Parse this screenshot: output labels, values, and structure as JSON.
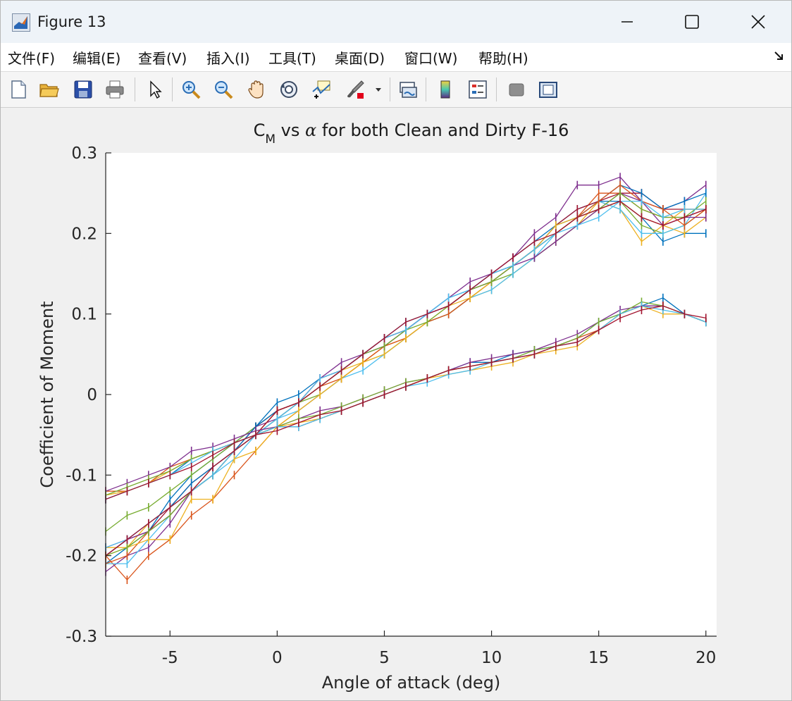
{
  "window": {
    "title": "Figure 13"
  },
  "menu": {
    "items": [
      "文件(F)",
      "编辑(E)",
      "查看(V)",
      "插入(I)",
      "工具(T)",
      "桌面(D)",
      "窗口(W)",
      "帮助(H)"
    ],
    "underline_keys": [
      "F",
      "E",
      "V",
      "I",
      "T",
      "D",
      "W",
      "H"
    ]
  },
  "toolbar": {
    "icons": [
      "new-figure-icon",
      "open-folder-icon",
      "save-icon",
      "print-icon",
      "pointer-icon",
      "zoom-in-icon",
      "zoom-out-icon",
      "pan-hand-icon",
      "rotate-3d-icon",
      "data-cursor-icon",
      "brush-icon",
      "link-plot-icon",
      "colorbar-icon",
      "legend-icon",
      "hide-plot-tools-icon",
      "show-plot-tools-icon"
    ]
  },
  "colors": {
    "matlab_order": [
      "#0072BD",
      "#D95319",
      "#EDB120",
      "#7E2F8E",
      "#77AC30",
      "#4DBEEE",
      "#A2142F"
    ],
    "plot_bg": "#ffffff",
    "figure_bg": "#f0f0f0"
  },
  "chart_data": {
    "type": "line",
    "title": "C_M vs α for both Clean and Dirty F-16",
    "title_parts": {
      "base": "C",
      "subscript": "M",
      "rest": " vs ",
      "greek": "α",
      "tail": " for both Clean and Dirty F-16"
    },
    "xlabel": "Angle of attack (deg)",
    "ylabel": "Coefficient of Moment",
    "xlim": [
      -8,
      20.5
    ],
    "ylim": [
      -0.3,
      0.3
    ],
    "xticks": [
      -5,
      0,
      5,
      10,
      15,
      20
    ],
    "yticks": [
      -0.3,
      -0.2,
      -0.1,
      0,
      0.1,
      0.2,
      0.3
    ],
    "ytick_labels": [
      "-0.3",
      "-0.2",
      "-0.1",
      "0",
      "0.1",
      "0.2",
      "0.3"
    ],
    "grid": false,
    "legend": "none",
    "x": [
      -8,
      -7,
      -6,
      -5,
      -4,
      -3,
      -2,
      -1,
      0,
      1,
      2,
      3,
      4,
      5,
      6,
      7,
      8,
      9,
      10,
      11,
      12,
      13,
      14,
      15,
      16,
      17,
      18,
      19,
      20
    ],
    "series_groups": [
      {
        "group": "upper",
        "series": [
          {
            "values": [
              -0.21,
              -0.19,
              -0.17,
              -0.13,
              -0.1,
              -0.08,
              -0.06,
              -0.04,
              -0.01,
              0.0,
              0.02,
              0.03,
              0.05,
              0.07,
              0.09,
              0.1,
              0.12,
              0.13,
              0.15,
              0.17,
              0.19,
              0.21,
              0.23,
              0.24,
              0.24,
              0.22,
              0.19,
              0.2,
              0.2
            ]
          },
          {
            "values": [
              -0.2,
              -0.23,
              -0.2,
              -0.18,
              -0.15,
              -0.13,
              -0.1,
              -0.07,
              -0.04,
              -0.02,
              0.0,
              0.02,
              0.04,
              0.06,
              0.08,
              0.1,
              0.11,
              0.13,
              0.14,
              0.16,
              0.18,
              0.2,
              0.22,
              0.25,
              0.25,
              0.23,
              0.22,
              0.22,
              0.23
            ]
          },
          {
            "values": [
              -0.19,
              -0.19,
              -0.16,
              -0.14,
              -0.12,
              -0.09,
              -0.07,
              -0.05,
              -0.02,
              -0.01,
              0.01,
              0.03,
              0.04,
              0.06,
              0.07,
              0.09,
              0.1,
              0.12,
              0.13,
              0.15,
              0.17,
              0.19,
              0.21,
              0.24,
              0.23,
              0.19,
              0.21,
              0.2,
              0.22
            ]
          },
          {
            "values": [
              -0.22,
              -0.2,
              -0.19,
              -0.16,
              -0.12,
              -0.1,
              -0.07,
              -0.04,
              -0.03,
              -0.01,
              0.02,
              0.04,
              0.05,
              0.07,
              0.08,
              0.1,
              0.12,
              0.14,
              0.15,
              0.17,
              0.2,
              0.22,
              0.26,
              0.26,
              0.27,
              0.24,
              0.23,
              0.24,
              0.26
            ]
          },
          {
            "values": [
              -0.17,
              -0.15,
              -0.14,
              -0.12,
              -0.1,
              -0.08,
              -0.06,
              -0.04,
              -0.02,
              -0.01,
              0.0,
              0.02,
              0.04,
              0.05,
              0.07,
              0.09,
              0.1,
              0.12,
              0.14,
              0.15,
              0.17,
              0.19,
              0.21,
              0.23,
              0.24,
              0.21,
              0.2,
              0.21,
              0.23
            ]
          },
          {
            "values": [
              -0.21,
              -0.21,
              -0.18,
              -0.15,
              -0.12,
              -0.1,
              -0.08,
              -0.05,
              -0.03,
              -0.02,
              0.0,
              0.02,
              0.03,
              0.05,
              0.07,
              0.09,
              0.1,
              0.12,
              0.13,
              0.15,
              0.17,
              0.2,
              0.22,
              0.24,
              0.23,
              0.2,
              0.2,
              0.21,
              0.25
            ]
          },
          {
            "values": [
              -0.2,
              -0.18,
              -0.17,
              -0.14,
              -0.11,
              -0.09,
              -0.07,
              -0.04,
              -0.02,
              -0.01,
              0.02,
              0.03,
              0.05,
              0.07,
              0.08,
              0.1,
              0.11,
              0.13,
              0.15,
              0.16,
              0.18,
              0.21,
              0.23,
              0.24,
              0.25,
              0.25,
              0.23,
              0.23,
              0.23
            ]
          },
          {
            "values": [
              -0.2,
              -0.18,
              -0.16,
              -0.14,
              -0.11,
              -0.09,
              -0.07,
              -0.04,
              -0.02,
              -0.01,
              0.01,
              0.03,
              0.05,
              0.06,
              0.08,
              0.1,
              0.11,
              0.13,
              0.15,
              0.16,
              0.18,
              0.21,
              0.22,
              0.24,
              0.26,
              0.25,
              0.23,
              0.24,
              0.25
            ]
          },
          {
            "values": [
              -0.21,
              -0.2,
              -0.17,
              -0.15,
              -0.12,
              -0.1,
              -0.07,
              -0.05,
              -0.02,
              -0.01,
              0.01,
              0.02,
              0.04,
              0.06,
              0.07,
              0.09,
              0.1,
              0.12,
              0.14,
              0.16,
              0.18,
              0.2,
              0.22,
              0.24,
              0.26,
              0.24,
              0.23,
              0.21,
              0.23
            ]
          },
          {
            "values": [
              -0.2,
              -0.19,
              -0.18,
              -0.18,
              -0.13,
              -0.13,
              -0.08,
              -0.07,
              -0.04,
              -0.02,
              0.0,
              0.02,
              0.04,
              0.05,
              0.07,
              0.09,
              0.11,
              0.12,
              0.14,
              0.16,
              0.18,
              0.21,
              0.22,
              0.23,
              0.24,
              0.22,
              0.21,
              0.23,
              0.23
            ]
          },
          {
            "values": [
              -0.19,
              -0.18,
              -0.17,
              -0.15,
              -0.12,
              -0.1,
              -0.07,
              -0.05,
              -0.03,
              -0.01,
              0.01,
              0.03,
              0.05,
              0.06,
              0.08,
              0.1,
              0.11,
              0.13,
              0.14,
              0.16,
              0.17,
              0.19,
              0.21,
              0.23,
              0.25,
              0.24,
              0.21,
              0.22,
              0.22
            ]
          },
          {
            "values": [
              -0.2,
              -0.19,
              -0.17,
              -0.15,
              -0.12,
              -0.1,
              -0.07,
              -0.05,
              -0.03,
              -0.01,
              0.01,
              0.03,
              0.05,
              0.06,
              0.08,
              0.09,
              0.11,
              0.13,
              0.14,
              0.16,
              0.18,
              0.2,
              0.22,
              0.23,
              0.25,
              0.23,
              0.22,
              0.22,
              0.24
            ]
          },
          {
            "values": [
              -0.19,
              -0.18,
              -0.16,
              -0.14,
              -0.12,
              -0.1,
              -0.07,
              -0.05,
              -0.03,
              -0.01,
              0.02,
              0.03,
              0.05,
              0.07,
              0.08,
              0.1,
              0.12,
              0.13,
              0.15,
              0.16,
              0.18,
              0.2,
              0.21,
              0.22,
              0.24,
              0.24,
              0.22,
              0.23,
              0.23
            ]
          },
          {
            "values": [
              -0.2,
              -0.18,
              -0.16,
              -0.14,
              -0.12,
              -0.09,
              -0.07,
              -0.05,
              -0.02,
              -0.01,
              0.01,
              0.03,
              0.05,
              0.07,
              0.09,
              0.1,
              0.11,
              0.13,
              0.15,
              0.17,
              0.19,
              0.2,
              0.22,
              0.23,
              0.24,
              0.22,
              0.21,
              0.22,
              0.23
            ]
          }
        ]
      },
      {
        "group": "lower",
        "series": [
          {
            "values": [
              -0.13,
              -0.12,
              -0.11,
              -0.1,
              -0.08,
              -0.07,
              -0.06,
              -0.05,
              -0.04,
              -0.04,
              -0.03,
              -0.02,
              -0.01,
              0.0,
              0.01,
              0.02,
              0.03,
              0.04,
              0.04,
              0.05,
              0.055,
              0.06,
              0.07,
              0.09,
              0.1,
              0.11,
              0.12,
              0.1,
              0.09
            ]
          },
          {
            "values": [
              -0.12,
              -0.12,
              -0.11,
              -0.09,
              -0.08,
              -0.07,
              -0.06,
              -0.05,
              -0.04,
              -0.04,
              -0.03,
              -0.02,
              -0.01,
              0.0,
              0.01,
              0.02,
              0.03,
              0.035,
              0.04,
              0.045,
              0.05,
              0.06,
              0.07,
              0.08,
              0.1,
              0.11,
              0.11,
              0.1,
              0.09
            ]
          },
          {
            "values": [
              -0.125,
              -0.12,
              -0.11,
              -0.095,
              -0.08,
              -0.07,
              -0.06,
              -0.05,
              -0.04,
              -0.035,
              -0.03,
              -0.02,
              -0.01,
              0.0,
              0.01,
              0.02,
              0.025,
              0.03,
              0.035,
              0.04,
              0.05,
              0.055,
              0.06,
              0.08,
              0.1,
              0.11,
              0.1,
              0.1,
              0.09
            ]
          },
          {
            "values": [
              -0.12,
              -0.11,
              -0.1,
              -0.09,
              -0.07,
              -0.065,
              -0.055,
              -0.045,
              -0.04,
              -0.03,
              -0.02,
              -0.015,
              -0.005,
              0.005,
              0.015,
              0.02,
              0.03,
              0.04,
              0.045,
              0.05,
              0.055,
              0.065,
              0.075,
              0.09,
              0.105,
              0.11,
              0.11,
              0.1,
              0.09
            ]
          },
          {
            "values": [
              -0.125,
              -0.115,
              -0.105,
              -0.095,
              -0.08,
              -0.07,
              -0.06,
              -0.05,
              -0.04,
              -0.03,
              -0.025,
              -0.015,
              -0.005,
              0.005,
              0.015,
              0.02,
              0.03,
              0.035,
              0.04,
              0.045,
              0.055,
              0.06,
              0.07,
              0.09,
              0.1,
              0.115,
              0.11,
              0.1,
              0.09
            ]
          },
          {
            "values": [
              -0.13,
              -0.12,
              -0.11,
              -0.1,
              -0.085,
              -0.07,
              -0.06,
              -0.05,
              -0.04,
              -0.04,
              -0.03,
              -0.02,
              -0.01,
              0.0,
              0.01,
              0.015,
              0.025,
              0.03,
              0.04,
              0.045,
              0.05,
              0.06,
              0.065,
              0.08,
              0.1,
              0.11,
              0.105,
              0.1,
              0.09
            ]
          },
          {
            "values": [
              -0.13,
              -0.12,
              -0.11,
              -0.1,
              -0.09,
              -0.075,
              -0.06,
              -0.05,
              -0.045,
              -0.035,
              -0.025,
              -0.02,
              -0.01,
              0.0,
              0.01,
              0.02,
              0.03,
              0.035,
              0.04,
              0.045,
              0.05,
              0.06,
              0.065,
              0.08,
              0.095,
              0.105,
              0.11,
              0.1,
              0.095
            ]
          }
        ]
      }
    ]
  }
}
